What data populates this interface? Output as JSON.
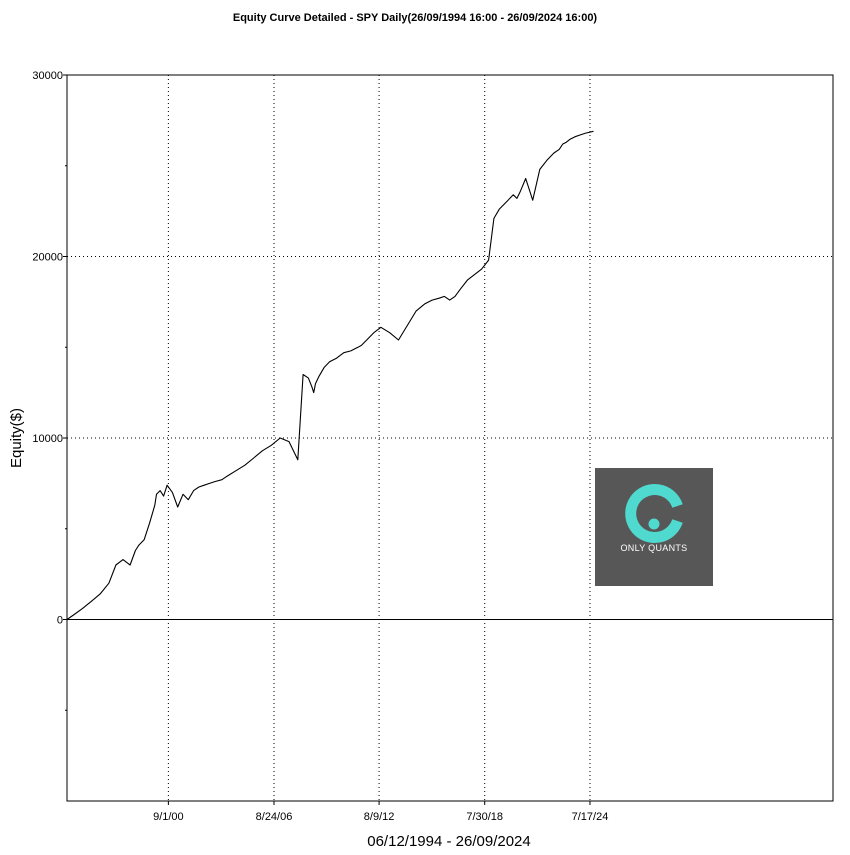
{
  "chart_data": {
    "type": "line",
    "title": "Equity Curve Detailed - SPY Daily(26/09/1994 16:00 - 26/09/2024 16:00)",
    "ylabel": "Equity($)",
    "xlabel": "06/12/1994 - 26/09/2024",
    "ylim": [
      -10000,
      30000
    ],
    "xlim": [
      1994.93,
      2038.3
    ],
    "y_ticks": [
      0,
      10000,
      20000,
      30000
    ],
    "y_tick_labels": [
      "0",
      "10000",
      "20000",
      "30000"
    ],
    "x_ticks": [
      2000.67,
      2006.65,
      2012.6,
      2018.58,
      2024.54
    ],
    "x_tick_labels": [
      "9/1/00",
      "8/24/06",
      "8/9/12",
      "7/30/18",
      "7/17/24"
    ],
    "grid": true,
    "line_color": "#000000",
    "series": [
      {
        "x": [
          1994.93,
          1995.3,
          1995.8,
          1996.3,
          1996.8,
          1997.3,
          1997.7,
          1998.1,
          1998.5,
          1998.8,
          1999.0,
          1999.3,
          1999.6,
          1999.9,
          2000.0,
          2000.2,
          2000.4,
          2000.6,
          2000.9,
          2001.2,
          2001.5,
          2001.8,
          2002.1,
          2002.4,
          2002.7,
          2003.0,
          2003.3,
          2003.7,
          2004.0,
          2004.5,
          2005.0,
          2005.5,
          2006.0,
          2006.5,
          2007.0,
          2007.5,
          2008.0,
          2008.3,
          2008.6,
          2008.8,
          2008.9,
          2009.0,
          2009.2,
          2009.5,
          2009.8,
          2010.2,
          2010.6,
          2011.0,
          2011.4,
          2011.6,
          2011.9,
          2012.3,
          2012.7,
          2013.2,
          2013.7,
          2014.2,
          2014.7,
          2015.2,
          2015.6,
          2016.0,
          2016.3,
          2016.6,
          2016.9,
          2017.2,
          2017.6,
          2018.0,
          2018.4,
          2018.8,
          2019.1,
          2019.4,
          2019.7,
          2020.0,
          2020.2,
          2020.4,
          2020.6,
          2020.9,
          2021.3,
          2021.7,
          2022.1,
          2022.5,
          2022.8,
          2023.0,
          2023.2,
          2023.4,
          2023.7,
          2024.0,
          2024.3,
          2024.74
        ],
        "values": [
          0,
          250,
          600,
          1000,
          1400,
          2000,
          3000,
          3300,
          3000,
          3800,
          4100,
          4400,
          5300,
          6300,
          6900,
          7100,
          6800,
          7400,
          7000,
          6200,
          6900,
          6600,
          7100,
          7300,
          7400,
          7500,
          7600,
          7700,
          7900,
          8200,
          8500,
          8900,
          9300,
          9600,
          10000,
          9800,
          8800,
          13500,
          13300,
          12800,
          12500,
          13000,
          13400,
          13900,
          14200,
          14400,
          14700,
          14800,
          15000,
          15100,
          15400,
          15800,
          16100,
          15800,
          15400,
          16200,
          17000,
          17400,
          17600,
          17700,
          17800,
          17600,
          17800,
          18200,
          18700,
          19000,
          19300,
          19800,
          22100,
          22600,
          22900,
          23200,
          23400,
          23200,
          23600,
          24300,
          23100,
          24800,
          25300,
          25700,
          25900,
          26200,
          26300,
          26450,
          26600,
          26700,
          26800,
          26900
        ]
      }
    ]
  },
  "watermark": {
    "text": "ONLY QUANTS",
    "background": "#575757",
    "icon": "letter-c-logo-icon",
    "icon_color": "#4fd9cf"
  }
}
